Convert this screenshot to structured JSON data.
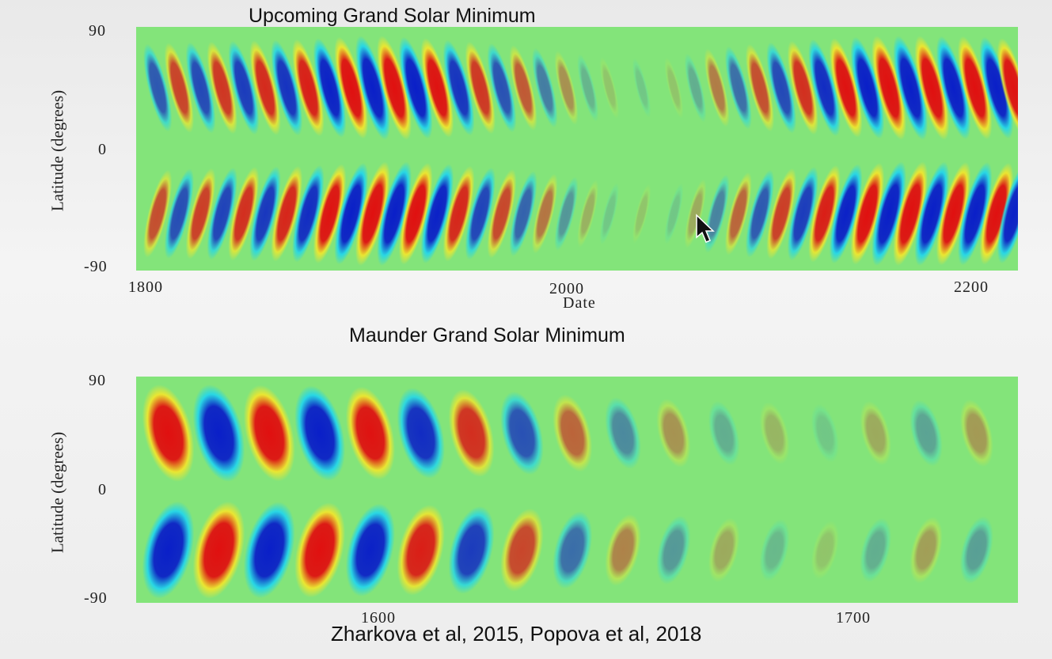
{
  "chart_data": [
    {
      "type": "heatmap",
      "title": "Upcoming Grand Solar Minimum",
      "xlabel": "Date",
      "ylabel": "Latitude (degrees)",
      "xlim": [
        1800,
        2210
      ],
      "ylim": [
        -90,
        90
      ],
      "x_ticks": [
        "1800",
        "2000",
        "2200"
      ],
      "y_ticks": [
        "90",
        "0",
        "-90"
      ],
      "colors": {
        "background": "#83e47a",
        "positive": "#e01010",
        "negative": "#0a1fc8",
        "pos_edge": "#f5e62a",
        "neg_edge": "#1fd6f0"
      },
      "bands": [
        {
          "x": 1810,
          "sign_north": -1,
          "amp": 0.65
        },
        {
          "x": 1820,
          "sign_north": 1,
          "amp": 0.7
        },
        {
          "x": 1830,
          "sign_north": -1,
          "amp": 0.72
        },
        {
          "x": 1840,
          "sign_north": 1,
          "amp": 0.75
        },
        {
          "x": 1850,
          "sign_north": -1,
          "amp": 0.78
        },
        {
          "x": 1860,
          "sign_north": 1,
          "amp": 0.8
        },
        {
          "x": 1870,
          "sign_north": -1,
          "amp": 0.82
        },
        {
          "x": 1880,
          "sign_north": 1,
          "amp": 0.85
        },
        {
          "x": 1890,
          "sign_north": -1,
          "amp": 0.9
        },
        {
          "x": 1900,
          "sign_north": 1,
          "amp": 0.95
        },
        {
          "x": 1910,
          "sign_north": -1,
          "amp": 1.0
        },
        {
          "x": 1920,
          "sign_north": 1,
          "amp": 1.0
        },
        {
          "x": 1930,
          "sign_north": -1,
          "amp": 0.95
        },
        {
          "x": 1940,
          "sign_north": 1,
          "amp": 0.9
        },
        {
          "x": 1950,
          "sign_north": -1,
          "amp": 0.82
        },
        {
          "x": 1960,
          "sign_north": 1,
          "amp": 0.75
        },
        {
          "x": 1970,
          "sign_north": -1,
          "amp": 0.68
        },
        {
          "x": 1980,
          "sign_north": 1,
          "amp": 0.6
        },
        {
          "x": 1990,
          "sign_north": -1,
          "amp": 0.48
        },
        {
          "x": 2000,
          "sign_north": 1,
          "amp": 0.36
        },
        {
          "x": 2010,
          "sign_north": -1,
          "amp": 0.22
        },
        {
          "x": 2020,
          "sign_north": 1,
          "amp": 0.1
        },
        {
          "x": 2035,
          "sign_north": -1,
          "amp": 0.05
        },
        {
          "x": 2050,
          "sign_north": 1,
          "amp": 0.08
        },
        {
          "x": 2060,
          "sign_north": -1,
          "amp": 0.25
        },
        {
          "x": 2070,
          "sign_north": 1,
          "amp": 0.45
        },
        {
          "x": 2080,
          "sign_north": -1,
          "amp": 0.55
        },
        {
          "x": 2090,
          "sign_north": 1,
          "amp": 0.65
        },
        {
          "x": 2100,
          "sign_north": -1,
          "amp": 0.72
        },
        {
          "x": 2110,
          "sign_north": 1,
          "amp": 0.78
        },
        {
          "x": 2120,
          "sign_north": -1,
          "amp": 0.85
        },
        {
          "x": 2130,
          "sign_north": 1,
          "amp": 0.9
        },
        {
          "x": 2140,
          "sign_north": -1,
          "amp": 0.95
        },
        {
          "x": 2150,
          "sign_north": 1,
          "amp": 1.0
        },
        {
          "x": 2160,
          "sign_north": -1,
          "amp": 1.0
        },
        {
          "x": 2170,
          "sign_north": 1,
          "amp": 1.0
        },
        {
          "x": 2180,
          "sign_north": -1,
          "amp": 0.98
        },
        {
          "x": 2190,
          "sign_north": 1,
          "amp": 0.98
        },
        {
          "x": 2200,
          "sign_north": -1,
          "amp": 0.95
        },
        {
          "x": 2208,
          "sign_north": 1,
          "amp": 0.9
        }
      ]
    },
    {
      "type": "heatmap",
      "title": "Maunder Grand Solar Minimum",
      "xlabel": "",
      "ylabel": "Latitude (degrees)",
      "xlim": [
        1548,
        1740
      ],
      "ylim": [
        -90,
        90
      ],
      "x_ticks": [
        "1600",
        "1700"
      ],
      "y_ticks": [
        "90",
        "0",
        "-90"
      ],
      "colors": {
        "background": "#83e47a",
        "positive": "#e01010",
        "negative": "#0a1fc8",
        "pos_edge": "#f5e62a",
        "neg_edge": "#1fd6f0"
      },
      "bands": [
        {
          "x": 1555,
          "sign_north": 1,
          "amp": 1.0
        },
        {
          "x": 1566,
          "sign_north": -1,
          "amp": 1.0
        },
        {
          "x": 1577,
          "sign_north": 1,
          "amp": 0.98
        },
        {
          "x": 1588,
          "sign_north": -1,
          "amp": 0.95
        },
        {
          "x": 1599,
          "sign_north": 1,
          "amp": 0.9
        },
        {
          "x": 1610,
          "sign_north": -1,
          "amp": 0.85
        },
        {
          "x": 1621,
          "sign_north": 1,
          "amp": 0.78
        },
        {
          "x": 1632,
          "sign_north": -1,
          "amp": 0.68
        },
        {
          "x": 1643,
          "sign_north": 1,
          "amp": 0.55
        },
        {
          "x": 1654,
          "sign_north": -1,
          "amp": 0.42
        },
        {
          "x": 1665,
          "sign_north": 1,
          "amp": 0.35
        },
        {
          "x": 1676,
          "sign_north": -1,
          "amp": 0.25
        },
        {
          "x": 1687,
          "sign_north": 1,
          "amp": 0.2
        },
        {
          "x": 1698,
          "sign_north": -1,
          "amp": 0.12
        },
        {
          "x": 1709,
          "sign_north": 1,
          "amp": 0.25
        },
        {
          "x": 1720,
          "sign_north": -1,
          "amp": 0.3
        },
        {
          "x": 1731,
          "sign_north": 1,
          "amp": 0.32
        }
      ]
    }
  ],
  "footer": {
    "credit": "Zharkova et al, 2015, Popova et al, 2018"
  }
}
